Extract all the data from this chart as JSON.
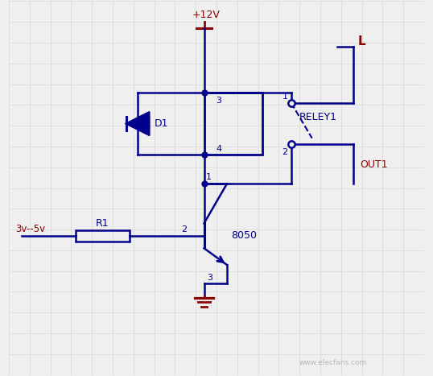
{
  "background_color": "#efefef",
  "grid_color": "#d8d8d8",
  "wire_color": "#00008B",
  "label_color": "#8B0000",
  "fig_width": 5.38,
  "fig_height": 4.67,
  "dpi": 100,
  "vcc_label": "+12V",
  "input_label": "3v--5v",
  "r1_label": "R1",
  "d1_label": "D1",
  "transistor_label": "8050",
  "relay_label": "RELEY1",
  "load_label": "L",
  "out_label": "OUT1",
  "watermark": "www.elecfans.com"
}
